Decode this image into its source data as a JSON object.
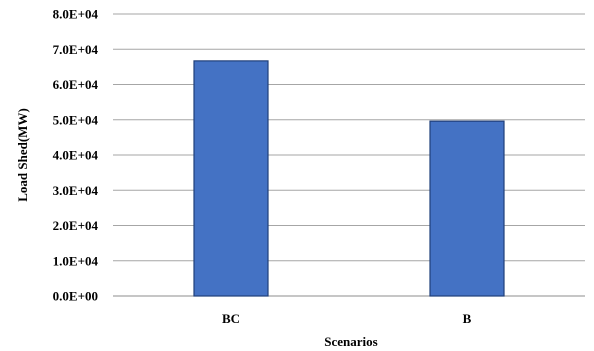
{
  "chart_data": {
    "type": "bar",
    "title": "",
    "xlabel": "Scenarios",
    "ylabel": "Load Shed(MW)",
    "categories": [
      "BC",
      "B"
    ],
    "values": [
      66700,
      49600
    ],
    "ylim": [
      0,
      80000
    ],
    "yticks": [
      0,
      10000,
      20000,
      30000,
      40000,
      50000,
      60000,
      70000,
      80000
    ],
    "ytick_labels": [
      "0.0E+00",
      "1.0E+04",
      "2.0E+04",
      "3.0E+04",
      "4.0E+04",
      "5.0E+04",
      "6.0E+04",
      "7.0E+04",
      "8.0E+04"
    ],
    "grid": true,
    "legend": "none",
    "bar_color": "#4472C4",
    "bar_edge_color": "#1F3F7A",
    "grid_color": "#A6A6A6"
  }
}
